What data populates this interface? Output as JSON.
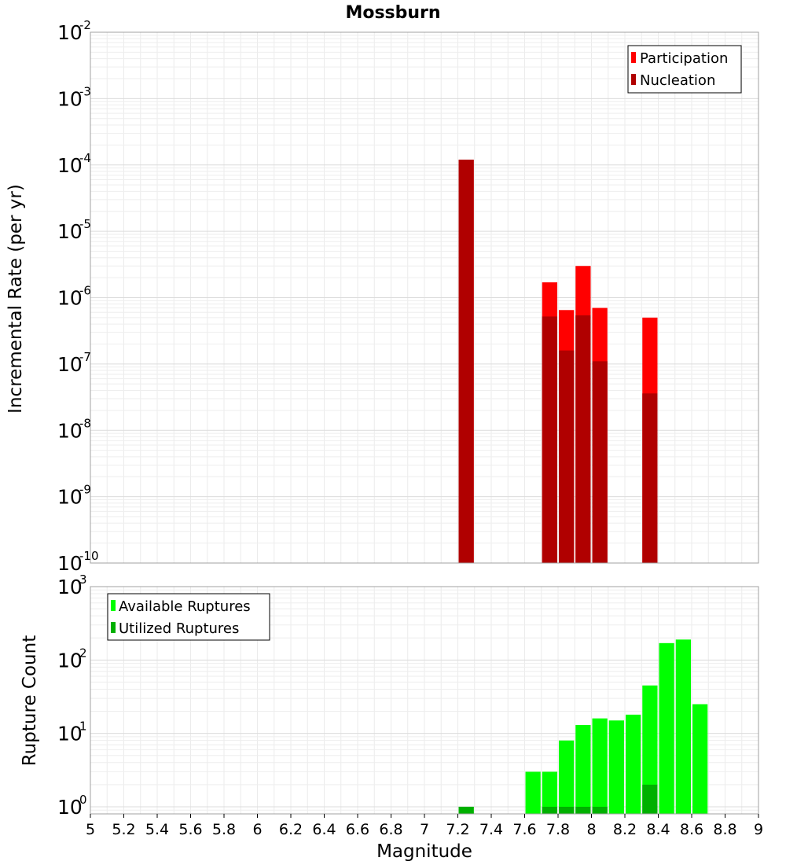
{
  "title": "Mossburn",
  "chart_data": [
    {
      "type": "bar",
      "ylabel": "Incremental Rate (per yr)",
      "yscale": "log",
      "ylim": [
        1e-10,
        0.01
      ],
      "xlim": [
        5,
        9
      ],
      "bin_width": 0.1,
      "grid": true,
      "legend_position": "top-right",
      "y_tick_exponents": [
        "-10",
        "-9",
        "-8",
        "-7",
        "-6",
        "-5",
        "-4",
        "-3",
        "-2"
      ],
      "y_tick_base": "10",
      "series": [
        {
          "name": "Participation",
          "color": "#ff0000",
          "x": [
            7.25,
            7.75,
            7.85,
            7.95,
            8.05,
            8.35
          ],
          "values": [
            0.00012,
            1.7e-06,
            6.5e-07,
            3e-06,
            7e-07,
            5e-07
          ]
        },
        {
          "name": "Nucleation",
          "color": "#b00000",
          "x": [
            7.25,
            7.75,
            7.85,
            7.95,
            8.05,
            8.35
          ],
          "values": [
            0.00012,
            5.2e-07,
            1.6e-07,
            5.4e-07,
            1.1e-07,
            3.6e-08
          ]
        }
      ]
    },
    {
      "type": "bar",
      "ylabel": "Rupture Count",
      "xlabel": "Magnitude",
      "yscale": "log",
      "ylim": [
        0.8,
        1000
      ],
      "xlim": [
        5,
        9
      ],
      "bin_width": 0.1,
      "grid": true,
      "legend_position": "top-left",
      "y_tick_exponents": [
        "0",
        "1",
        "2",
        "3"
      ],
      "y_tick_base": "10",
      "x_ticks": [
        "5",
        "5.2",
        "5.4",
        "5.6",
        "5.8",
        "6",
        "6.2",
        "6.4",
        "6.6",
        "6.8",
        "7",
        "7.2",
        "7.4",
        "7.6",
        "7.8",
        "8",
        "8.2",
        "8.4",
        "8.6",
        "8.8",
        "9"
      ],
      "series": [
        {
          "name": "Available Ruptures",
          "color": "#00ff00",
          "x": [
            7.25,
            7.65,
            7.75,
            7.85,
            7.95,
            8.05,
            8.15,
            8.25,
            8.35,
            8.45,
            8.55,
            8.65
          ],
          "values": [
            1,
            3,
            3,
            8,
            13,
            16,
            15,
            18,
            45,
            170,
            190,
            25
          ]
        },
        {
          "name": "Utilized Ruptures",
          "color": "#00b000",
          "x": [
            7.25,
            7.75,
            7.85,
            7.95,
            8.05,
            8.35
          ],
          "values": [
            1,
            1,
            1,
            1,
            1,
            2
          ]
        }
      ]
    }
  ]
}
